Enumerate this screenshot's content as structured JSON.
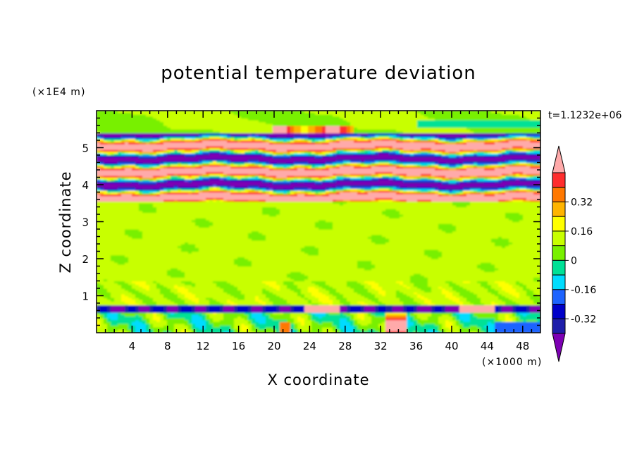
{
  "chart_data": {
    "type": "heatmap",
    "title": "potential temperature deviation",
    "xlabel": "X coordinate",
    "ylabel": "Z coordinate",
    "x_unit": "(×1000 m)",
    "y_unit": "(×1E4 m)",
    "time_label": "t=1.1232e+06",
    "xlim": [
      0,
      50
    ],
    "ylim": [
      0,
      6
    ],
    "x_ticks": [
      4,
      8,
      12,
      16,
      20,
      24,
      28,
      32,
      36,
      40,
      44,
      48
    ],
    "y_ticks": [
      1,
      2,
      3,
      4,
      5
    ],
    "colorbar": {
      "levels": [
        -0.48,
        -0.4,
        -0.32,
        -0.24,
        -0.16,
        -0.08,
        0,
        0.08,
        0.16,
        0.24,
        0.32,
        0.4,
        0.48
      ],
      "colors": [
        "#7d00b4",
        "#1e1eaa",
        "#0000c8",
        "#1e64ff",
        "#00dcff",
        "#00e196",
        "#78f000",
        "#c8ff00",
        "#ffff00",
        "#ffb400",
        "#ff7800",
        "#ff2d2d",
        "#ffaaaa"
      ],
      "tick_labels": [
        "0.32",
        "0.16",
        "0",
        "-0.16",
        "-0.32"
      ],
      "tick_values": [
        0.32,
        0.16,
        0,
        -0.16,
        -0.32
      ]
    },
    "grid": false,
    "bands": [
      {
        "z": [
          0.0,
          0.55
        ],
        "dominant": "mixed",
        "notes": "near-surface layer with cyan, green, orange patches; strong positive plume near x=33-35"
      },
      {
        "z": [
          0.55,
          0.75
        ],
        "dominant": "strong negative",
        "notes": "thin purple/blue inversion line with pink patches near x=24-27 and x=41-45"
      },
      {
        "z": [
          0.75,
          3.55
        ],
        "dominant": "near zero",
        "notes": "green/yellow-green field, values roughly -0.08 to 0.08"
      },
      {
        "z": [
          3.55,
          5.4
        ],
        "dominant": "alternating",
        "notes": "interleaved pink (>0.4) and purple (<-0.4) layers"
      },
      {
        "z": [
          5.4,
          6.0
        ],
        "dominant": "near zero",
        "notes": "green/cyan upper layer with orange-red cap near x=22-28"
      }
    ]
  }
}
